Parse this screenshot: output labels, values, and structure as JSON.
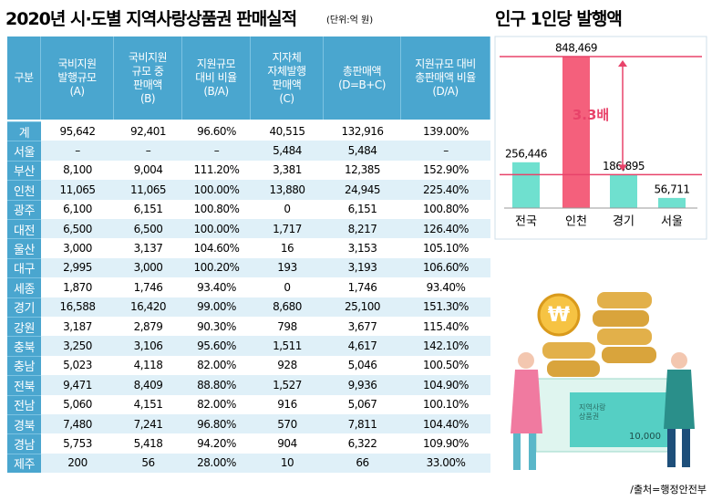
{
  "title": "2020년 시·도별 지역사랑상품권 판매실적",
  "unit": "(단위:억 원)",
  "table": {
    "header": [
      "구분",
      "국비지원\n발행규모\n(A)",
      "국비지원\n규모 중\n판매액\n(B)",
      "지원규모\n대비 비율\n(B/A)",
      "지자체\n자체발행\n판매액\n(C)",
      "총판매액\n(D=B+C)",
      "지원규모 대비\n총판매액 비율\n(D/A)"
    ],
    "rows": [
      [
        "계",
        "95,642",
        "92,401",
        "96.60%",
        "40,515",
        "132,916",
        "139.00%"
      ],
      [
        "서울",
        "–",
        "–",
        "–",
        "5,484",
        "5,484",
        "–"
      ],
      [
        "부산",
        "8,100",
        "9,004",
        "111.20%",
        "3,381",
        "12,385",
        "152.90%"
      ],
      [
        "인천",
        "11,065",
        "11,065",
        "100.00%",
        "13,880",
        "24,945",
        "225.40%"
      ],
      [
        "광주",
        "6,100",
        "6,151",
        "100.80%",
        "0",
        "6,151",
        "100.80%"
      ],
      [
        "대전",
        "6,500",
        "6,500",
        "100.00%",
        "1,717",
        "8,217",
        "126.40%"
      ],
      [
        "울산",
        "3,000",
        "3,137",
        "104.60%",
        "16",
        "3,153",
        "105.10%"
      ],
      [
        "대구",
        "2,995",
        "3,000",
        "100.20%",
        "193",
        "3,193",
        "106.60%"
      ],
      [
        "세종",
        "1,870",
        "1,746",
        "93.40%",
        "0",
        "1,746",
        "93.40%"
      ],
      [
        "경기",
        "16,588",
        "16,420",
        "99.00%",
        "8,680",
        "25,100",
        "151.30%"
      ],
      [
        "강원",
        "3,187",
        "2,879",
        "90.30%",
        "798",
        "3,677",
        "115.40%"
      ],
      [
        "충북",
        "3,250",
        "3,106",
        "95.60%",
        "1,511",
        "4,617",
        "142.10%"
      ],
      [
        "충남",
        "5,023",
        "4,118",
        "82.00%",
        "928",
        "5,046",
        "100.50%"
      ],
      [
        "전북",
        "9,471",
        "8,409",
        "88.80%",
        "1,527",
        "9,936",
        "104.90%"
      ],
      [
        "전남",
        "5,060",
        "4,151",
        "82.00%",
        "916",
        "5,067",
        "100.10%"
      ],
      [
        "경북",
        "7,480",
        "7,241",
        "96.80%",
        "570",
        "7,811",
        "104.40%"
      ],
      [
        "경남",
        "5,753",
        "5,418",
        "94.20%",
        "904",
        "6,322",
        "109.90%"
      ],
      [
        "제주",
        "200",
        "56",
        "28.00%",
        "10",
        "66",
        "33.00%"
      ]
    ]
  },
  "chart_data": {
    "type": "bar",
    "title": "인구 1인당 발행액",
    "categories": [
      "전국",
      "인천",
      "경기",
      "서울"
    ],
    "values": [
      256446,
      848469,
      186895,
      56711
    ],
    "value_labels": [
      "256,446",
      "848,469",
      "186,895",
      "56,711"
    ],
    "colors": [
      "#6fe0cf",
      "#f4607c",
      "#6fe0cf",
      "#6fe0cf"
    ],
    "annotation": "3.3배"
  },
  "illustration": {
    "card_title": "지역사랑\n상품권",
    "card_value": "10,000"
  },
  "source": "/출처=행정안전부"
}
